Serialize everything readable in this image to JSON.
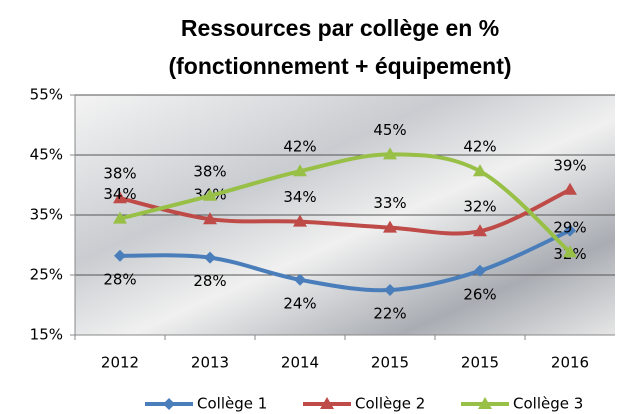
{
  "chart_data": {
    "type": "line",
    "title": [
      "Ressources par collège en %",
      "(fonctionnement + équipement)"
    ],
    "categories": [
      "2012",
      "2013",
      "2014",
      "2015",
      "2015",
      "2016"
    ],
    "ylim": [
      15,
      55
    ],
    "yticks": [
      {
        "value": 15,
        "label": "15%"
      },
      {
        "value": 25,
        "label": "25%"
      },
      {
        "value": 35,
        "label": "35%"
      },
      {
        "value": 45,
        "label": "45%"
      },
      {
        "value": 55,
        "label": "55%"
      }
    ],
    "grid": true,
    "smooth": true,
    "legend": "bottom",
    "series": [
      {
        "name": "Collège 1",
        "color": "#4a7ebb",
        "marker": "diamond",
        "values": [
          28.2,
          27.9,
          24.2,
          22.5,
          25.7,
          32.4
        ],
        "value_labels": [
          "28%",
          "28%",
          "24%",
          "22%",
          "26%",
          "32%"
        ]
      },
      {
        "name": "Collège 2",
        "color": "#be4b48",
        "marker": "triangle",
        "values": [
          37.8,
          34.3,
          33.9,
          32.9,
          32.3,
          39.2
        ],
        "value_labels": [
          "38%",
          "34%",
          "34%",
          "33%",
          "32%",
          "39%"
        ]
      },
      {
        "name": "Collège 3",
        "color": "#98c047",
        "marker": "triangle",
        "values": [
          34.4,
          38.2,
          42.3,
          45.1,
          42.3,
          28.8
        ],
        "value_labels": [
          "34%",
          "38%",
          "42%",
          "45%",
          "42%",
          "29%"
        ]
      }
    ]
  }
}
